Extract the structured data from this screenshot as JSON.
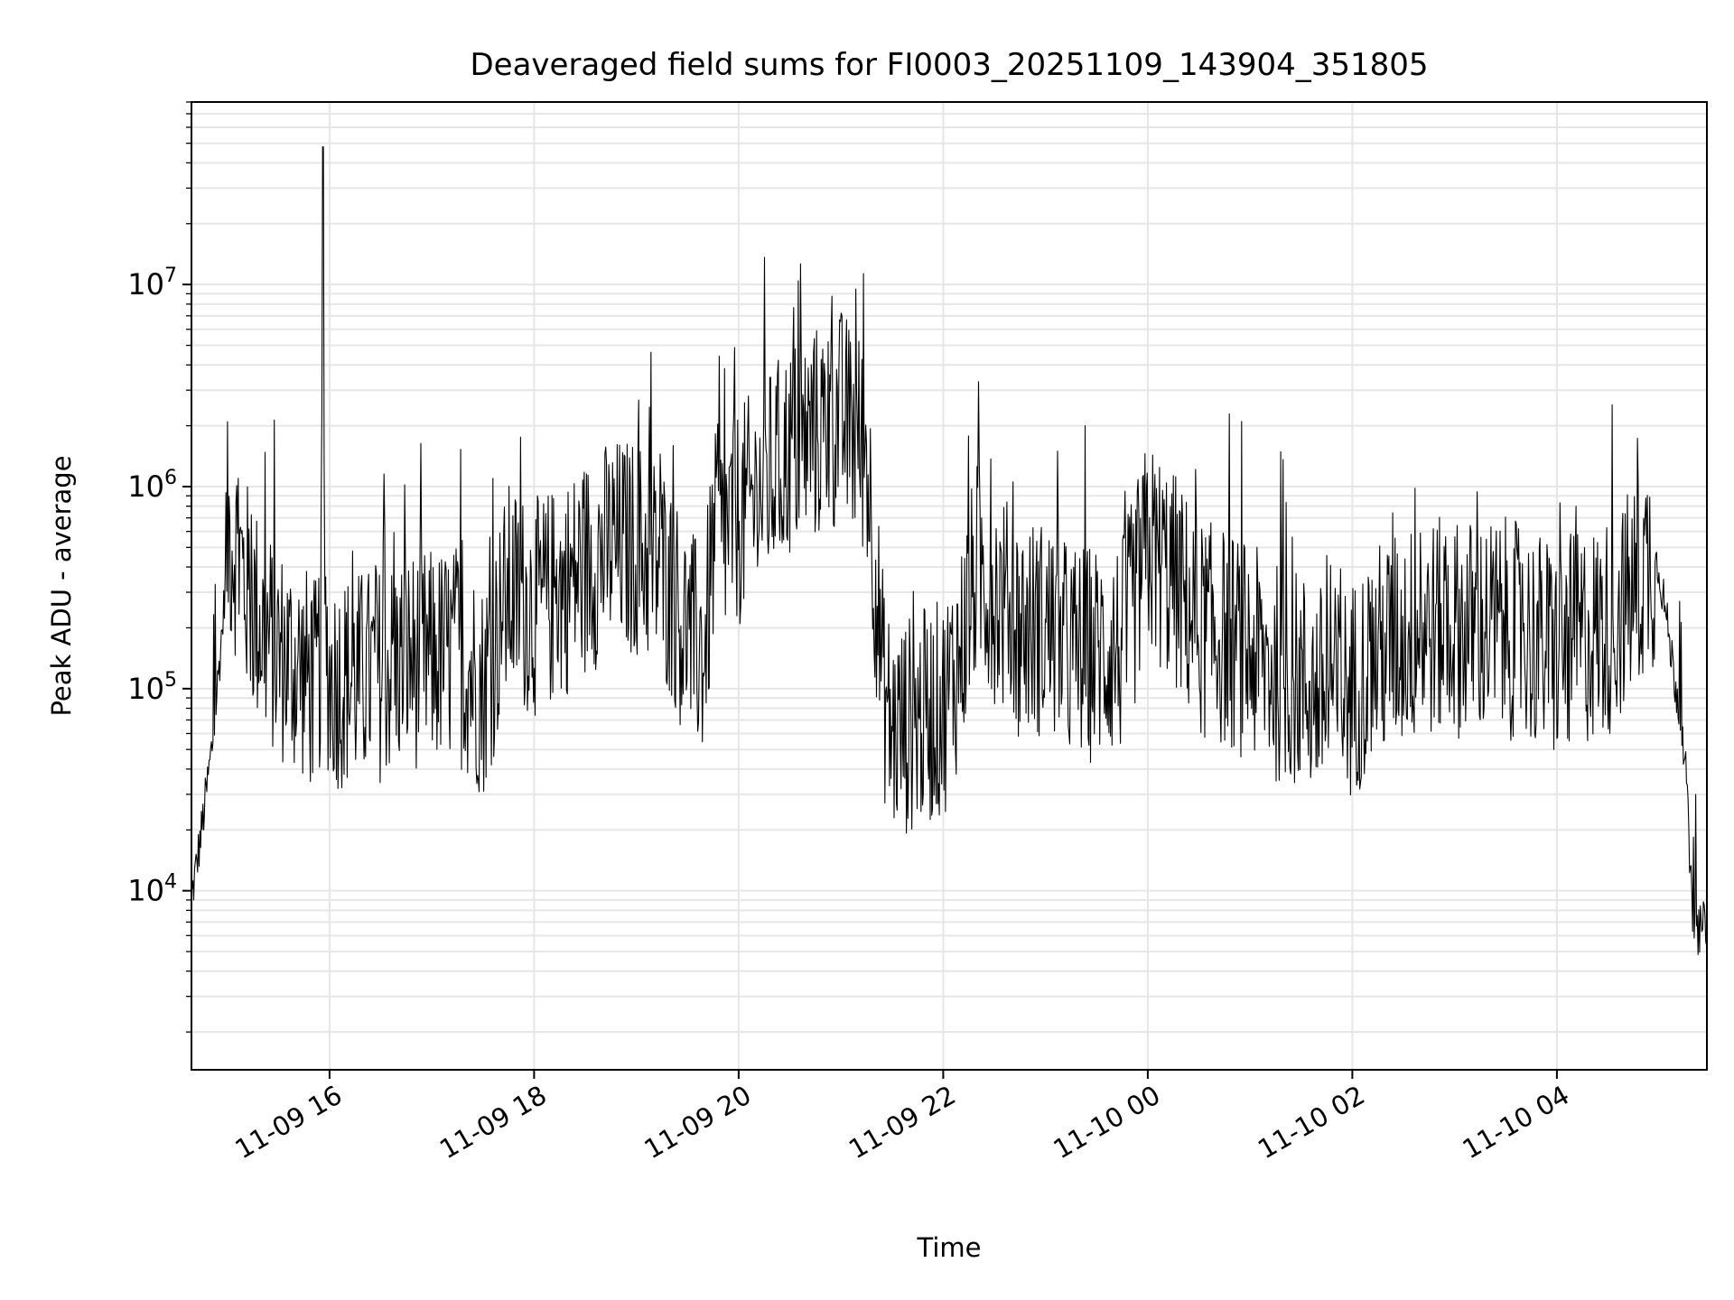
{
  "chart_data": {
    "type": "line",
    "title": "Deaveraged field sums for FI0003_20251109_143904_351805",
    "xlabel": "Time",
    "ylabel": "Peak ADU - average",
    "y_scale": "log",
    "ylim": [
      1300,
      80000000
    ],
    "xlim": [
      "2025-11-09 14:39",
      "2025-11-10 05:28"
    ],
    "grid": true,
    "line_color": "#000000",
    "grid_color": "#e6e6e6",
    "x_ticks": [
      {
        "value": "2025-11-09 16:00",
        "label": "11-09 16"
      },
      {
        "value": "2025-11-09 18:00",
        "label": "11-09 18"
      },
      {
        "value": "2025-11-09 20:00",
        "label": "11-09 20"
      },
      {
        "value": "2025-11-09 22:00",
        "label": "11-09 22"
      },
      {
        "value": "2025-11-10 00:00",
        "label": "11-10 00"
      },
      {
        "value": "2025-11-10 02:00",
        "label": "11-10 02"
      },
      {
        "value": "2025-11-10 04:00",
        "label": "11-10 04"
      }
    ],
    "y_ticks": [
      {
        "value": 10000,
        "base": "10",
        "exp": "4"
      },
      {
        "value": 100000,
        "base": "10",
        "exp": "5"
      },
      {
        "value": 1000000,
        "base": "10",
        "exp": "6"
      },
      {
        "value": 10000000,
        "base": "10",
        "exp": "7"
      }
    ],
    "series": [
      {
        "values_note_free": true,
        "x": [
          "2025-11-09 14:39",
          "2025-11-09 14:45",
          "2025-11-09 14:52",
          "2025-11-09 14:58",
          "2025-11-09 15:00",
          "2025-11-09 15:05",
          "2025-11-09 15:12",
          "2025-11-09 15:20",
          "2025-11-09 15:30",
          "2025-11-09 15:45",
          "2025-11-09 15:52",
          "2025-11-09 15:55",
          "2025-11-09 15:56",
          "2025-11-09 15:57",
          "2025-11-09 16:00",
          "2025-11-09 16:15",
          "2025-11-09 16:30",
          "2025-11-09 16:45",
          "2025-11-09 17:00",
          "2025-11-09 17:15",
          "2025-11-09 17:30",
          "2025-11-09 17:45",
          "2025-11-09 18:00",
          "2025-11-09 18:15",
          "2025-11-09 18:30",
          "2025-11-09 18:45",
          "2025-11-09 19:00",
          "2025-11-09 19:15",
          "2025-11-09 19:30",
          "2025-11-09 19:40",
          "2025-11-09 19:45",
          "2025-11-09 20:00",
          "2025-11-09 20:15",
          "2025-11-09 20:30",
          "2025-11-09 20:45",
          "2025-11-09 21:00",
          "2025-11-09 21:15",
          "2025-11-09 21:25",
          "2025-11-09 21:30",
          "2025-11-09 21:45",
          "2025-11-09 22:00",
          "2025-11-09 22:10",
          "2025-11-09 22:20",
          "2025-11-09 22:30",
          "2025-11-09 22:45",
          "2025-11-09 23:00",
          "2025-11-09 23:15",
          "2025-11-09 23:30",
          "2025-11-09 23:45",
          "2025-11-10 00:00",
          "2025-11-10 00:15",
          "2025-11-10 00:30",
          "2025-11-10 00:45",
          "2025-11-10 01:00",
          "2025-11-10 01:15",
          "2025-11-10 01:30",
          "2025-11-10 01:45",
          "2025-11-10 02:00",
          "2025-11-10 02:15",
          "2025-11-10 02:30",
          "2025-11-10 02:45",
          "2025-11-10 03:00",
          "2025-11-10 03:15",
          "2025-11-10 03:30",
          "2025-11-10 03:45",
          "2025-11-10 04:00",
          "2025-11-10 04:15",
          "2025-11-10 04:30",
          "2025-11-10 04:45",
          "2025-11-10 04:55",
          "2025-11-10 05:00",
          "2025-11-10 05:07",
          "2025-11-10 05:15",
          "2025-11-10 05:20",
          "2025-11-10 05:28"
        ],
        "y": [
          9000,
          20000,
          60000,
          250000,
          600000,
          500000,
          300000,
          200000,
          150000,
          120000,
          100000,
          150000,
          48000000,
          200000,
          110000,
          110000,
          120000,
          140000,
          140000,
          150000,
          100000,
          300000,
          250000,
          300000,
          400000,
          500000,
          500000,
          400000,
          180000,
          150000,
          500000,
          700000,
          1000000,
          1500000,
          1800000,
          2200000,
          1500000,
          100000,
          60000,
          70000,
          80000,
          150000,
          400000,
          300000,
          200000,
          200000,
          150000,
          150000,
          160000,
          500000,
          350000,
          200000,
          180000,
          150000,
          120000,
          110000,
          90000,
          100000,
          150000,
          180000,
          200000,
          200000,
          200000,
          200000,
          180000,
          150000,
          180000,
          200000,
          300000,
          450000,
          400000,
          150000,
          50000,
          6000,
          7000
        ]
      }
    ]
  }
}
